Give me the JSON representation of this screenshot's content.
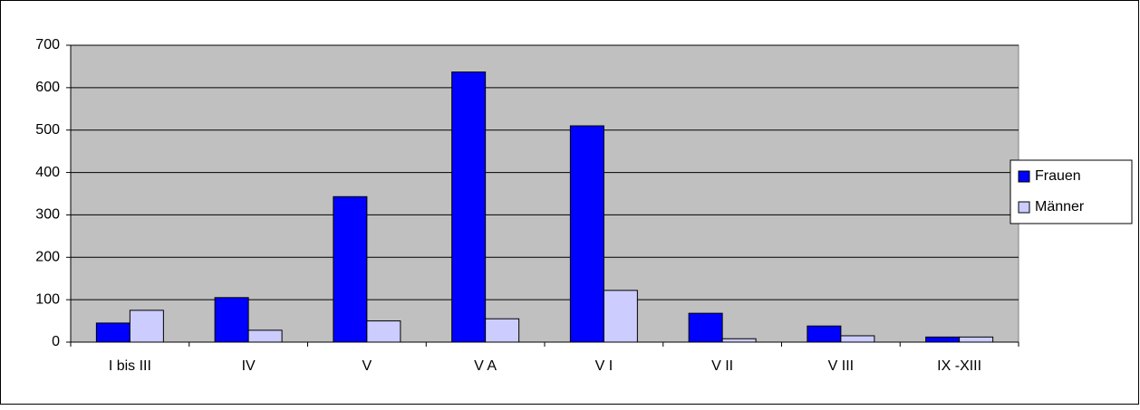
{
  "chart_data": {
    "type": "bar",
    "categories": [
      "I bis III",
      "IV",
      "V",
      "V A",
      "V I",
      "V II",
      "V III",
      "IX -XIII"
    ],
    "series": [
      {
        "name": "Frauen",
        "color": "#0000ff",
        "values": [
          45,
          105,
          343,
          637,
          510,
          68,
          38,
          12
        ]
      },
      {
        "name": "Männer",
        "color": "#ccccff",
        "values": [
          75,
          28,
          50,
          55,
          122,
          8,
          15,
          12
        ]
      }
    ],
    "ylim": [
      0,
      700
    ],
    "yticks": [
      0,
      100,
      200,
      300,
      400,
      500,
      600,
      700
    ],
    "grid": true,
    "legend": "right"
  }
}
